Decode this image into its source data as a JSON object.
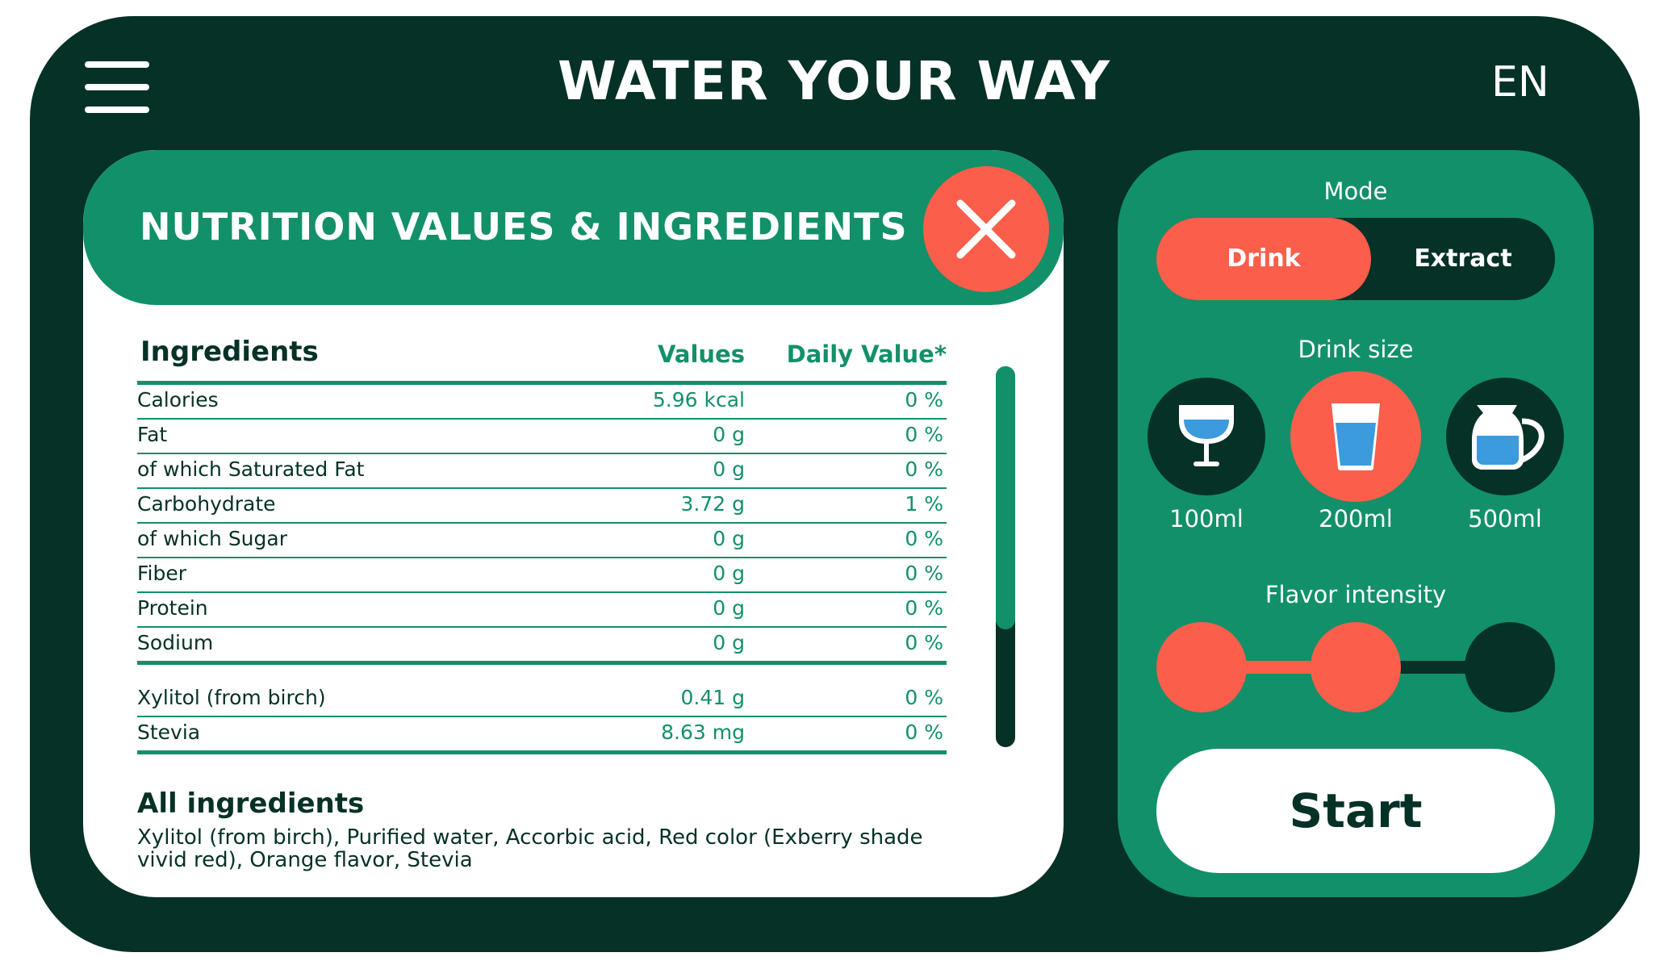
{
  "header": {
    "title": "WATER YOUR WAY",
    "language": "EN",
    "menu_icon": "hamburger-menu-icon"
  },
  "nutrition": {
    "title": "NUTRITION VALUES & INGREDIENTS",
    "close_icon": "close-icon",
    "columns": {
      "ingredient": "Ingredients",
      "value": "Values",
      "daily": "Daily Value*"
    },
    "rows": [
      {
        "name": "Calories",
        "value": "5.96 kcal",
        "daily": "0 %"
      },
      {
        "name": "Fat",
        "value": "0 g",
        "daily": "0 %"
      },
      {
        "name": "of which Saturated Fat",
        "value": "0 g",
        "daily": "0 %"
      },
      {
        "name": "Carbohydrate",
        "value": "3.72 g",
        "daily": "1 %"
      },
      {
        "name": "of which Sugar",
        "value": "0 g",
        "daily": "0 %"
      },
      {
        "name": "Fiber",
        "value": "0 g",
        "daily": "0 %"
      },
      {
        "name": "Protein",
        "value": "0 g",
        "daily": "0 %"
      },
      {
        "name": "Sodium",
        "value": "0 g",
        "daily": "0 %"
      }
    ],
    "extra_rows": [
      {
        "name": "Xylitol (from birch)",
        "value": "0.41 g",
        "daily": "0 %"
      },
      {
        "name": "Stevia",
        "value": "8.63 mg",
        "daily": "0 %"
      }
    ],
    "all_ingredients_title": "All ingredients",
    "all_ingredients_text": "Xylitol (from birch), Purified water, Accorbic acid, Red color (Exberry shade vivid red), Orange flavor, Stevia"
  },
  "controls": {
    "mode_label": "Mode",
    "modes": [
      {
        "label": "Drink",
        "selected": true
      },
      {
        "label": "Extract",
        "selected": false
      }
    ],
    "size_label": "Drink size",
    "sizes": [
      {
        "label": "100ml",
        "icon": "wine-glass-icon",
        "selected": false
      },
      {
        "label": "200ml",
        "icon": "water-glass-icon",
        "selected": true
      },
      {
        "label": "500ml",
        "icon": "pitcher-icon",
        "selected": false
      }
    ],
    "flavor_label": "Flavor intensity",
    "flavor_level": 2,
    "flavor_max": 3,
    "start_label": "Start"
  },
  "colors": {
    "dark": "#053127",
    "green": "#12906a",
    "accent": "#fb5e4b",
    "water": "#3b9bdc",
    "white": "#ffffff"
  }
}
